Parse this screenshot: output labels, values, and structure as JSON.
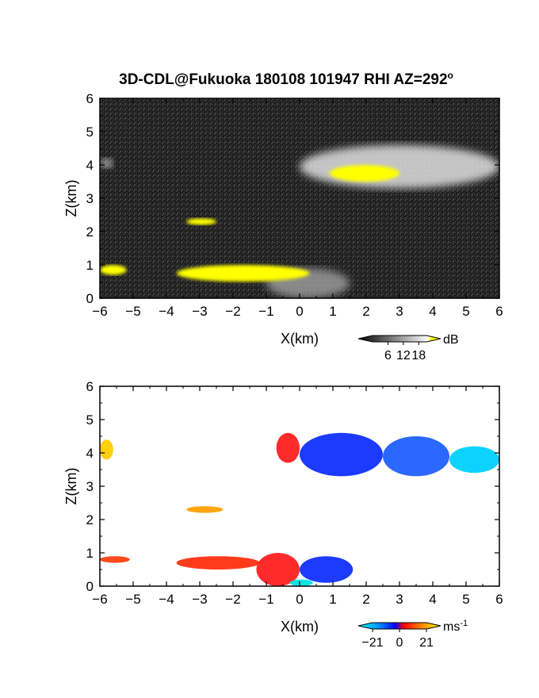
{
  "title": "3D-CDL@Fukuoka 180108 101947 RHI AZ=292",
  "title_deg": "o",
  "chart_data": [
    {
      "type": "heatmap",
      "name": "reflectivity",
      "xlabel": "X(km)",
      "ylabel": "Z(km)",
      "xlim": [
        -6,
        6
      ],
      "ylim": [
        0,
        6
      ],
      "xticks": [
        "-6",
        "-5",
        "-4",
        "-3",
        "-2",
        "-1",
        "0",
        "1",
        "2",
        "3",
        "4",
        "5",
        "6"
      ],
      "yticks": [
        "0",
        "1",
        "2",
        "3",
        "4",
        "5",
        "6"
      ],
      "background_color": "#222222",
      "colorbar": {
        "unit": "dB",
        "ticks": [
          "6",
          "12",
          "18"
        ],
        "range": [
          0,
          21
        ]
      },
      "features": [
        {
          "kind": "cloud",
          "x": [
            0.0,
            6.0
          ],
          "z": [
            3.3,
            4.6
          ],
          "color": "#e0e0e0"
        },
        {
          "kind": "cloud",
          "x": [
            -6.0,
            -5.6
          ],
          "z": [
            3.9,
            4.2
          ],
          "color": "#bbbbbb"
        },
        {
          "kind": "cloud",
          "x": [
            -1.0,
            1.5
          ],
          "z": [
            0.0,
            0.9
          ],
          "color": "#9a9a9a"
        },
        {
          "kind": "echo",
          "x": [
            0.9,
            3.0
          ],
          "z": [
            3.5,
            4.0
          ],
          "color": "#ffff00"
        },
        {
          "kind": "echo",
          "x": [
            -6.0,
            -5.2
          ],
          "z": [
            0.7,
            1.0
          ],
          "color": "#ffff00"
        },
        {
          "kind": "echo",
          "x": [
            -3.4,
            -2.5
          ],
          "z": [
            2.2,
            2.4
          ],
          "color": "#ffff00"
        },
        {
          "kind": "echo",
          "x": [
            -3.7,
            0.3
          ],
          "z": [
            0.5,
            1.0
          ],
          "color": "#ffff00"
        }
      ]
    },
    {
      "type": "heatmap",
      "name": "doppler_velocity",
      "xlabel": "X(km)",
      "ylabel": "Z(km)",
      "xlim": [
        -6,
        6
      ],
      "ylim": [
        0,
        6
      ],
      "xticks": [
        "-6",
        "-5",
        "-4",
        "-3",
        "-2",
        "-1",
        "0",
        "1",
        "2",
        "3",
        "4",
        "5",
        "6"
      ],
      "yticks": [
        "0",
        "1",
        "2",
        "3",
        "4",
        "5",
        "6"
      ],
      "background_color": "#ffffff",
      "colorbar": {
        "unit": "ms",
        "unit_exp": "-1",
        "ticks": [
          "-21",
          "0",
          "21"
        ],
        "range": [
          -21,
          21
        ]
      },
      "features": [
        {
          "kind": "region",
          "x": [
            -0.7,
            0.0
          ],
          "z": [
            3.7,
            4.6
          ],
          "color": "#ff2020"
        },
        {
          "kind": "region",
          "x": [
            0.0,
            2.5
          ],
          "z": [
            3.3,
            4.6
          ],
          "color": "#1030ff"
        },
        {
          "kind": "region",
          "x": [
            2.5,
            4.5
          ],
          "z": [
            3.3,
            4.5
          ],
          "color": "#2060ff"
        },
        {
          "kind": "region",
          "x": [
            4.5,
            6.0
          ],
          "z": [
            3.4,
            4.2
          ],
          "color": "#00d0ff"
        },
        {
          "kind": "region",
          "x": [
            -6.0,
            -5.6
          ],
          "z": [
            3.8,
            4.4
          ],
          "color": "#ffcc00"
        },
        {
          "kind": "region",
          "x": [
            -3.4,
            -2.3
          ],
          "z": [
            2.2,
            2.4
          ],
          "color": "#ffa000"
        },
        {
          "kind": "region",
          "x": [
            -6.0,
            -5.1
          ],
          "z": [
            0.7,
            0.9
          ],
          "color": "#ff4010"
        },
        {
          "kind": "region",
          "x": [
            -3.7,
            -1.2
          ],
          "z": [
            0.5,
            0.9
          ],
          "color": "#ff3010"
        },
        {
          "kind": "region",
          "x": [
            -1.3,
            0.0
          ],
          "z": [
            0.0,
            1.0
          ],
          "color": "#ff2020"
        },
        {
          "kind": "region",
          "x": [
            0.0,
            1.6
          ],
          "z": [
            0.1,
            0.9
          ],
          "color": "#1030ff"
        },
        {
          "kind": "region",
          "x": [
            -0.3,
            0.4
          ],
          "z": [
            0.0,
            0.2
          ],
          "color": "#00e0e0"
        }
      ]
    }
  ]
}
